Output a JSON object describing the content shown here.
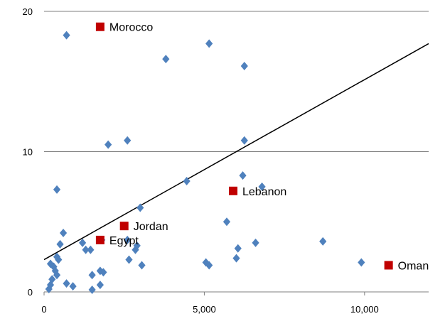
{
  "chart_data": {
    "type": "scatter",
    "title": "",
    "xlabel": "",
    "ylabel": "",
    "xlim": [
      0,
      12000
    ],
    "ylim": [
      0,
      20
    ],
    "x_ticks": [
      {
        "value": 0,
        "label": "0"
      },
      {
        "value": 5000,
        "label": "5,000"
      },
      {
        "value": 10000,
        "label": "10,000"
      }
    ],
    "y_ticks": [
      {
        "value": 0,
        "label": "0"
      },
      {
        "value": 10,
        "label": "10"
      },
      {
        "value": 20,
        "label": "20"
      }
    ],
    "grid": "horizontal",
    "colors": {
      "points": "#4f81bd",
      "highlight": "#c00000",
      "trendline": "#000000",
      "grid": "#7f7f7f"
    },
    "series": [
      {
        "marker": "diamond",
        "points": [
          [
            700,
            18.3
          ],
          [
            5150,
            17.7
          ],
          [
            3800,
            16.6
          ],
          [
            6250,
            16.1
          ],
          [
            6250,
            10.8
          ],
          [
            2600,
            10.8
          ],
          [
            2000,
            10.5
          ],
          [
            6200,
            8.3
          ],
          [
            4450,
            7.9
          ],
          [
            6800,
            7.5
          ],
          [
            400,
            7.3
          ],
          [
            3000,
            6.0
          ],
          [
            5700,
            5.0
          ],
          [
            600,
            4.2
          ],
          [
            1200,
            3.5
          ],
          [
            500,
            3.4
          ],
          [
            1800,
            3.7
          ],
          [
            2600,
            3.7
          ],
          [
            2900,
            3.3
          ],
          [
            1300,
            3.0
          ],
          [
            1450,
            3.0
          ],
          [
            2850,
            3.0
          ],
          [
            6600,
            3.5
          ],
          [
            8700,
            3.6
          ],
          [
            400,
            2.5
          ],
          [
            450,
            2.3
          ],
          [
            200,
            2.0
          ],
          [
            300,
            1.8
          ],
          [
            350,
            1.5
          ],
          [
            400,
            1.2
          ],
          [
            2650,
            2.3
          ],
          [
            3050,
            1.9
          ],
          [
            5050,
            2.1
          ],
          [
            5150,
            1.9
          ],
          [
            6000,
            2.4
          ],
          [
            6050,
            3.1
          ],
          [
            9900,
            2.1
          ],
          [
            1750,
            1.5
          ],
          [
            1850,
            1.4
          ],
          [
            1500,
            1.2
          ],
          [
            250,
            0.9
          ],
          [
            200,
            0.5
          ],
          [
            150,
            0.2
          ],
          [
            700,
            0.6
          ],
          [
            900,
            0.4
          ],
          [
            1750,
            0.5
          ],
          [
            1500,
            0.15
          ]
        ]
      },
      {
        "marker": "square",
        "points": [
          {
            "label": "Morocco",
            "x": 1750,
            "y": 18.9
          },
          {
            "label": "Lebanon",
            "x": 5900,
            "y": 7.2
          },
          {
            "label": "Jordan",
            "x": 2500,
            "y": 4.7
          },
          {
            "label": "Egypt",
            "x": 1750,
            "y": 3.7
          },
          {
            "label": "Oman",
            "x": 10750,
            "y": 1.9
          }
        ]
      }
    ],
    "trendline": {
      "x0": 0,
      "y0": 2.3,
      "x1": 12000,
      "y1": 17.7
    }
  }
}
